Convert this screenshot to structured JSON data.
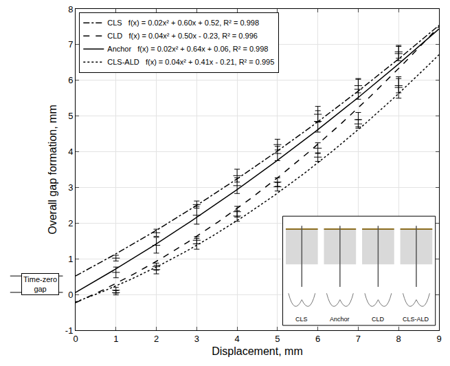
{
  "chart_data": {
    "type": "line",
    "x_label": "Displacement, mm",
    "y_label": "Overall gap formation, mm",
    "xlim": [
      0,
      9
    ],
    "ylim": [
      -1,
      8
    ],
    "xticks": [
      0,
      1,
      2,
      3,
      4,
      5,
      6,
      7,
      8,
      9
    ],
    "yticks": [
      -1,
      0,
      1,
      2,
      3,
      4,
      5,
      6,
      7,
      8
    ],
    "grid": true,
    "legend": "upper left",
    "x": [
      1,
      2,
      3,
      4,
      5,
      6,
      7,
      8
    ],
    "series": [
      {
        "name": "CLS",
        "fit": [
          0.02,
          0.6,
          0.52
        ],
        "fit_label": "f(x) = 0.02x² + 0.60x + 0.52, R² = 0.998",
        "line_style": "dashdot",
        "color": "#000000",
        "marker": "line-ew",
        "values": [
          1.02,
          1.73,
          2.52,
          3.33,
          4.2,
          5.05,
          5.85,
          6.8
        ],
        "errors": [
          0.08,
          0.1,
          0.1,
          0.18,
          0.15,
          0.22,
          0.2,
          0.18
        ]
      },
      {
        "name": "CLD",
        "fit": [
          0.04,
          0.5,
          -0.23
        ],
        "fit_label": "f(x) = 0.04x² + 0.50x - 0.23, R² = 0.996",
        "line_style": "dash",
        "color": "#000000",
        "marker": "line-ew",
        "values": [
          0.12,
          0.78,
          1.52,
          2.32,
          3.15,
          4.1,
          4.9,
          5.85
        ],
        "errors": [
          0.08,
          0.1,
          0.1,
          0.15,
          0.12,
          0.15,
          0.2,
          0.2
        ]
      },
      {
        "name": "Anchor",
        "fit": [
          0.02,
          0.64,
          0.06
        ],
        "fit_label": "f(x) = 0.02x² + 0.64x + 0.06, R² = 0.998",
        "line_style": "solid",
        "color": "#000000",
        "marker": "line-ew",
        "values": [
          0.62,
          1.38,
          2.22,
          3.05,
          3.95,
          4.85,
          5.75,
          6.75
        ],
        "errors": [
          0.15,
          0.22,
          0.25,
          0.22,
          0.2,
          0.3,
          0.28,
          0.2
        ]
      },
      {
        "name": "CLS-ALD",
        "fit": [
          0.04,
          0.41,
          -0.21
        ],
        "fit_label": "f(x) = 0.04x² + 0.41x - 0.21, R² = 0.995",
        "line_style": "dot",
        "color": "#000000",
        "marker": "line-ew",
        "values": [
          0.05,
          0.7,
          1.42,
          2.2,
          3.02,
          3.85,
          4.78,
          5.8
        ],
        "errors": [
          0.06,
          0.12,
          0.15,
          0.15,
          0.12,
          0.12,
          0.12,
          0.3
        ]
      }
    ],
    "annotations": [
      {
        "text": "Time-zero gap",
        "between": [
          "Anchor",
          "CLS"
        ]
      }
    ],
    "inset": {
      "labels": [
        "CLS",
        "Anchor",
        "CLD",
        "CLS-ALD"
      ]
    }
  }
}
